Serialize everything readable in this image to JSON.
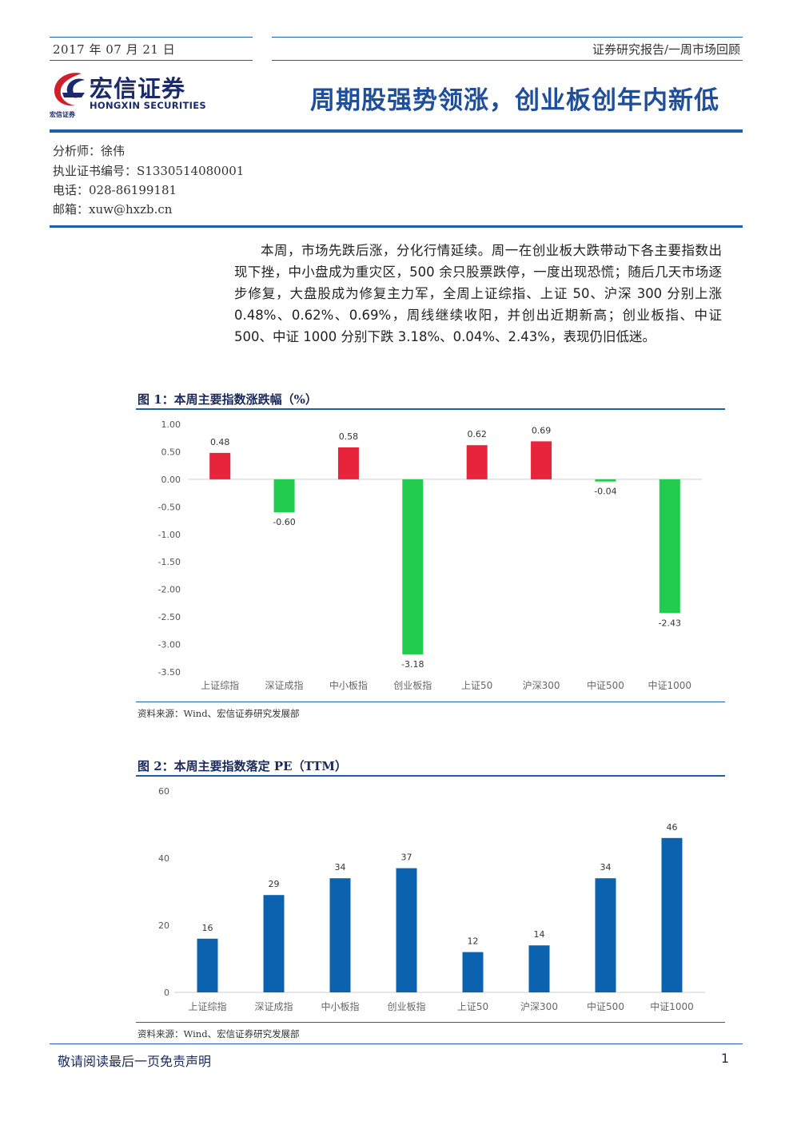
{
  "header": {
    "date": "2017 年 07 月 21 日",
    "report_type": "证券研究报告/一周市场回顾"
  },
  "logo": {
    "name_cn": "宏信证券",
    "name_en": "HONGXIN SECURITIES",
    "small_cn": "宏信证券",
    "brand_color": "#1a2a6c",
    "accent_color": "#d0202a"
  },
  "report_title": "周期股强势领涨，创业板创年内新低",
  "analyst": {
    "name_line": "分析师：徐伟",
    "cert_line": "执业证书编号：S1330514080001",
    "phone_line": "电话：028-86199181",
    "email_line": "邮箱：xuw@hxzb.cn"
  },
  "summary": "本周，市场先跌后涨，分化行情延续。周一在创业板大跌带动下各主要指数出现下挫，中小盘成为重灾区，500 余只股票跌停，一度出现恐慌；随后几天市场逐步修复，大盘股成为修复主力军，全周上证综指、上证 50、沪深 300 分别上涨 0.48%、0.62%、0.69%，周线继续收阳，并创出近期新高；创业板指、中证 500、中证 1000 分别下跌 3.18%、0.04%、2.43%，表现仍旧低迷。",
  "figures": {
    "fig1_title": "图 1：本周主要指数涨跌幅（%）",
    "fig1_source": "资料来源：Wind、宏信证券研究发展部",
    "fig2_title": "图 2：本周主要指数落定 PE（TTM）",
    "fig2_source": "资料来源：Wind、宏信证券研究发展部"
  },
  "chart_data": [
    {
      "type": "bar",
      "categories": [
        "上证综指",
        "深证成指",
        "中小板指",
        "创业板指",
        "上证50",
        "沪深300",
        "中证500",
        "中证1000"
      ],
      "values": [
        0.48,
        -0.6,
        0.58,
        -3.18,
        0.62,
        0.69,
        -0.04,
        -2.43
      ],
      "value_labels": [
        "0.48",
        "-0.60",
        "0.58",
        "-3.18",
        "0.62",
        "0.69",
        "-0.04",
        "-2.43"
      ],
      "ylim": [
        -3.5,
        1.0
      ],
      "yticks": [
        "1.00",
        "0.50",
        "0.00",
        "-0.50",
        "-1.00",
        "-1.50",
        "-2.00",
        "-2.50",
        "-3.00",
        "-3.50"
      ],
      "positive_color": "#e8243c",
      "negative_color": "#22cc4e",
      "grid": false
    },
    {
      "type": "bar",
      "categories": [
        "上证综指",
        "深证成指",
        "中小板指",
        "创业板指",
        "上证50",
        "沪深300",
        "中证500",
        "中证1000"
      ],
      "values": [
        16,
        29,
        34,
        37,
        12,
        14,
        34,
        46
      ],
      "value_labels": [
        "16",
        "29",
        "34",
        "37",
        "12",
        "14",
        "34",
        "46"
      ],
      "ylim": [
        0,
        60
      ],
      "yticks": [
        "60",
        "40",
        "20",
        "0"
      ],
      "bar_color": "#0b63b0",
      "grid": false
    }
  ],
  "footer": {
    "disclaimer": "敬请阅读最后一页免责声明",
    "page_number": "1"
  }
}
